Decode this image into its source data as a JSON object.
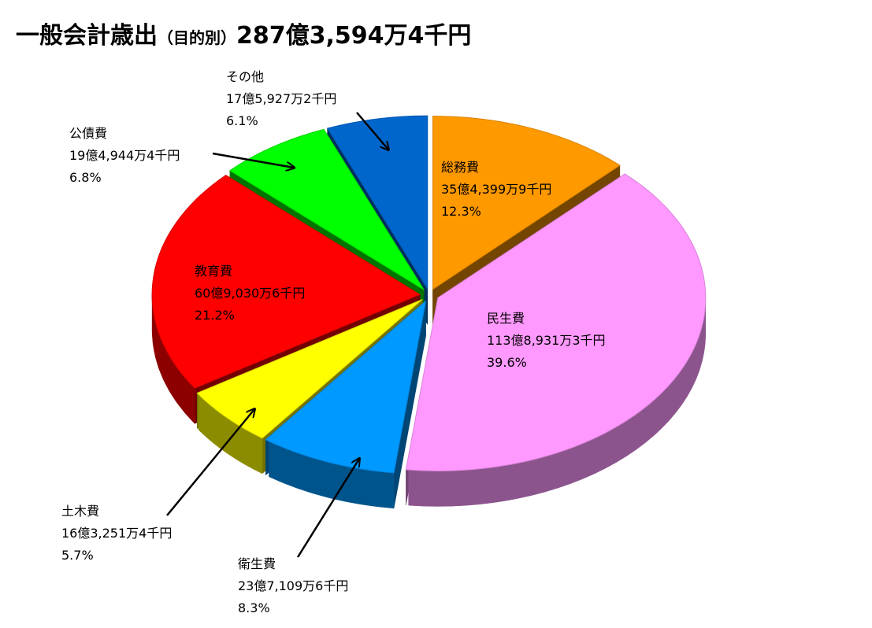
{
  "title": {
    "main": "一般会計歳出",
    "qualifier": "（目的別）",
    "total": "287億3,594万4千円"
  },
  "chart_data": {
    "type": "pie",
    "title": "一般会計歳出（目的別）287億3,594万4千円",
    "slices": [
      {
        "name": "総務費",
        "amount": "35億4,399万9千円",
        "percent_label": "12.3%",
        "value": 12.3,
        "color": "#FF9900"
      },
      {
        "name": "民生費",
        "amount": "113億8,931万3千円",
        "percent_label": "39.6%",
        "value": 39.6,
        "color": "#FF99FF"
      },
      {
        "name": "衛生費",
        "amount": "23億7,109万6千円",
        "percent_label": "8.3%",
        "value": 8.3,
        "color": "#0099FF"
      },
      {
        "name": "土木費",
        "amount": "16億3,251万4千円",
        "percent_label": "5.7%",
        "value": 5.7,
        "color": "#FFFF00"
      },
      {
        "name": "教育費",
        "amount": "60億9,030万6千円",
        "percent_label": "21.2%",
        "value": 21.2,
        "color": "#FF0000"
      },
      {
        "name": "公債費",
        "amount": "19億4,944万4千円",
        "percent_label": "6.8%",
        "value": 6.8,
        "color": "#00FF00"
      },
      {
        "name": "その他",
        "amount": "17億5,927万2千円",
        "percent_label": "6.1%",
        "value": 6.1,
        "color": "#0066CC"
      }
    ]
  }
}
